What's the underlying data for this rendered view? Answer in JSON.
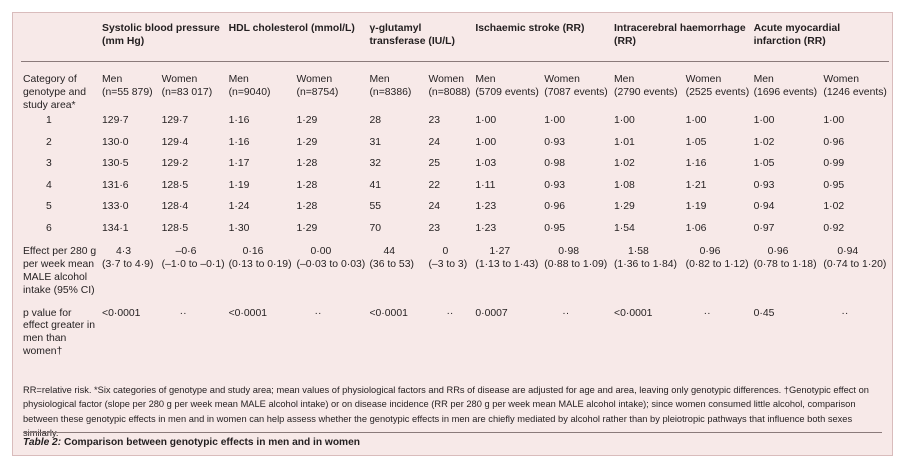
{
  "headers": [
    "",
    "Systolic blood pressure (mm Hg)",
    "HDL cholesterol (mmol/L)",
    "γ-glutamyl transferase (IU/L)",
    "Ischaemic stroke (RR)",
    "Intracerebral haemorrhage (RR)",
    "Acute myocardial infarction (RR)"
  ],
  "first_col_label": "Category of genotype and study area*",
  "subheads": [
    [
      "Men",
      "(n=55 879)"
    ],
    [
      "Women",
      "(n=83 017)"
    ],
    [
      "Men",
      "(n=9040)"
    ],
    [
      "Women",
      "(n=8754)"
    ],
    [
      "Men",
      "(n=8386)"
    ],
    [
      "Women",
      "(n=8088)"
    ],
    [
      "Men",
      "(5709 events)"
    ],
    [
      "Women",
      "(7087 events)"
    ],
    [
      "Men",
      "(2790 events)"
    ],
    [
      "Women",
      "(2525 events)"
    ],
    [
      "Men",
      "(1696 events)"
    ],
    [
      "Women",
      "(1246 events)"
    ]
  ],
  "rows": [
    {
      "cat": "1",
      "vals": [
        "129·7",
        "129·7",
        "1·16",
        "1·29",
        "28",
        "23",
        "1·00",
        "1·00",
        "1·00",
        "1·00",
        "1·00",
        "1·00"
      ]
    },
    {
      "cat": "2",
      "vals": [
        "130·0",
        "129·4",
        "1·16",
        "1·29",
        "31",
        "24",
        "1·00",
        "0·93",
        "1·01",
        "1·05",
        "1·02",
        "0·96"
      ]
    },
    {
      "cat": "3",
      "vals": [
        "130·5",
        "129·2",
        "1·17",
        "1·28",
        "32",
        "25",
        "1·03",
        "0·98",
        "1·02",
        "1·16",
        "1·05",
        "0·99"
      ]
    },
    {
      "cat": "4",
      "vals": [
        "131·6",
        "128·5",
        "1·19",
        "1·28",
        "41",
        "22",
        "1·11",
        "0·93",
        "1·08",
        "1·21",
        "0·93",
        "0·95"
      ]
    },
    {
      "cat": "5",
      "vals": [
        "133·0",
        "128·4",
        "1·24",
        "1·28",
        "55",
        "24",
        "1·23",
        "0·96",
        "1·29",
        "1·19",
        "0·94",
        "1·02"
      ]
    },
    {
      "cat": "6",
      "vals": [
        "134·1",
        "128·5",
        "1·30",
        "1·29",
        "70",
        "23",
        "1·23",
        "0·95",
        "1·54",
        "1·06",
        "0·97",
        "0·92"
      ]
    }
  ],
  "effect_label": "Effect per 280 g per week mean MALE alcohol intake (95% CI)",
  "effect": [
    [
      "4·3",
      "(3·7 to 4·9)"
    ],
    [
      "–0·6",
      "(–1·0 to –0·1)"
    ],
    [
      "0·16",
      "(0·13 to 0·19)"
    ],
    [
      "0·00",
      "(–0·03 to 0·03)"
    ],
    [
      "44",
      "(36 to 53)"
    ],
    [
      "0",
      "(–3 to 3)"
    ],
    [
      "1·27",
      "(1·13 to 1·43)"
    ],
    [
      "0·98",
      "(0·88 to 1·09)"
    ],
    [
      "1·58",
      "(1·36 to 1·84)"
    ],
    [
      "0·96",
      "(0·82 to 1·12)"
    ],
    [
      "0·96",
      "(0·78 to 1·18)"
    ],
    [
      "0·94",
      "(0·74 to 1·20)"
    ]
  ],
  "pvalue_label": "p value for effect greater in men than women†",
  "pvalues": [
    "<0·0001",
    "··",
    "<0·0001",
    "··",
    "<0·0001",
    "··",
    "0·0007",
    "··",
    "<0·0001",
    "··",
    "0·45",
    "··"
  ],
  "footnote": "RR=relative risk. *Six categories of genotype and study area; mean values of physiological factors and RRs of disease are adjusted for age and area, leaving only genotypic differences. †Genotypic effect on physiological factor (slope per 280 g per week mean MALE alcohol intake) or on disease incidence (RR per 280 g per week mean MALE alcohol intake); since women consumed little alcohol, comparison between these genotypic effects in men and in women can help assess whether the genotypic effects in men are chiefly mediated by alcohol rather than by pleiotropic pathways that influence both sexes similarly.",
  "caption_label": "Table 2:",
  "caption_text": " Comparison between genotypic effects in men and in women"
}
